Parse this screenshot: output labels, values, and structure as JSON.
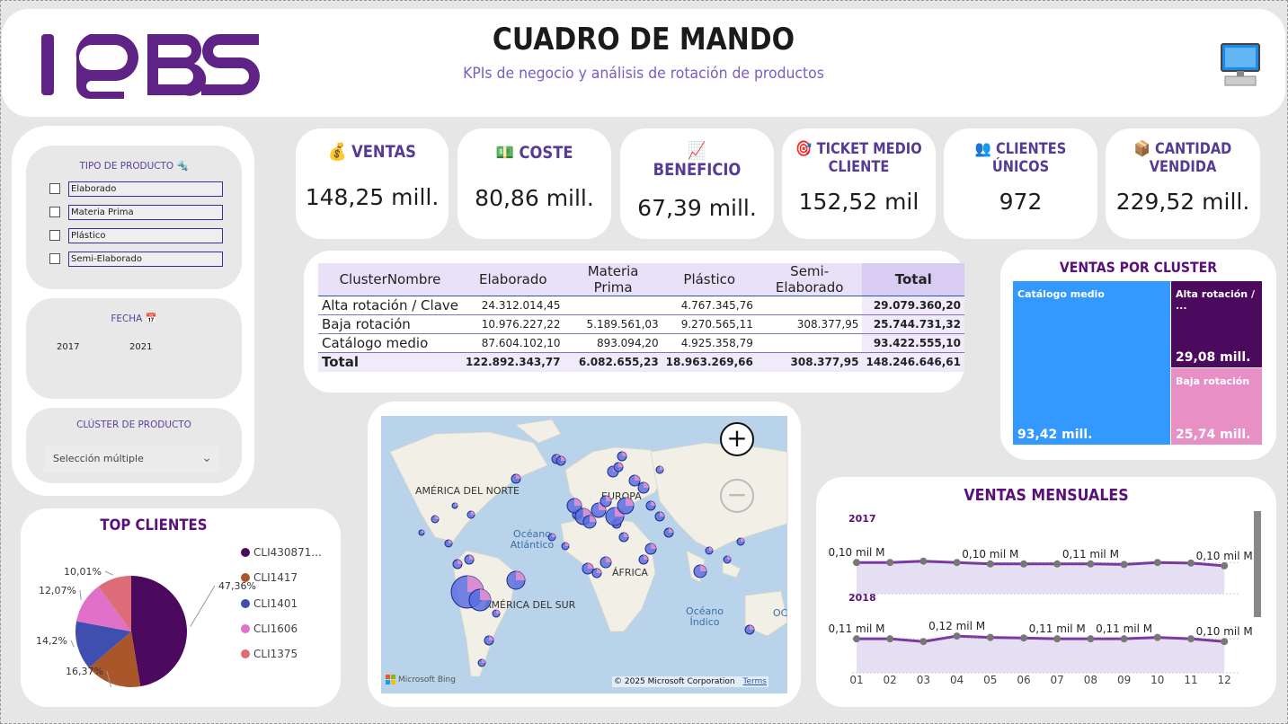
{
  "header": {
    "title": "CUADRO DE MANDO",
    "subtitle": "KPIs de negocio y análisis de rotación de productos"
  },
  "filters": {
    "product_type": {
      "title": "TIPO DE PRODUCTO 🔩",
      "options": [
        "Elaborado",
        "Materia Prima",
        "Plástico",
        "Semi-Elaborado"
      ]
    },
    "date": {
      "title": "FECHA 📅",
      "from": "2017",
      "to": "2021"
    },
    "cluster": {
      "title": "CLÚSTER DE PRODUCTO",
      "selected": "Selección múltiple"
    }
  },
  "kpis": [
    {
      "icon": "💰",
      "label": "VENTAS",
      "value": "148,25 mill."
    },
    {
      "icon": "💵",
      "label": "COSTE",
      "value": "80,86 mill."
    },
    {
      "icon": "📈",
      "label": "BENEFICIO",
      "value": "67,39 mill."
    },
    {
      "icon": "🎯",
      "label_line1": "TICKET MEDIO",
      "label_line2": "CLIENTE",
      "value": "152,52 mil"
    },
    {
      "icon": "👥",
      "label_line1": "CLIENTES",
      "label_line2": "ÚNICOS",
      "value": "972"
    },
    {
      "icon": "📦",
      "label_line1": "CANTIDAD",
      "label_line2": "VENDIDA",
      "value": "229,52 mill."
    }
  ],
  "matrix": {
    "headers": [
      "ClusterNombre",
      "Elaborado",
      "Materia Prima",
      "Plástico",
      "Semi-Elaborado",
      "Total"
    ],
    "rows": [
      [
        "Alta rotación / Clave",
        "24.312.014,45",
        "",
        "4.767.345,76",
        "",
        "29.079.360,20"
      ],
      [
        "Baja rotación",
        "10.976.227,22",
        "5.189.561,03",
        "9.270.565,11",
        "308.377,95",
        "25.744.731,32"
      ],
      [
        "Catálogo medio",
        "87.604.102,10",
        "893.094,20",
        "4.925.358,79",
        "",
        "93.422.555,10"
      ]
    ],
    "total": [
      "Total",
      "122.892.343,77",
      "6.082.655,23",
      "18.963.269,66",
      "308.377,95",
      "148.246.646,61"
    ]
  },
  "cluster_chart": {
    "title": "VENTAS POR CLUSTER",
    "items": [
      {
        "label": "Catálogo medio",
        "value": "93,42 mill.",
        "color": "#3399ff"
      },
      {
        "label": "Alta rotación / ...",
        "value": "29,08 mill.",
        "color": "#4b0a5e"
      },
      {
        "label": "Baja rotación",
        "value": "25,74 mill.",
        "color": "#e88fc6"
      }
    ]
  },
  "map": {
    "labels": [
      "AMÉRICA DEL NORTE",
      "EUROPA",
      "ÁFRICA",
      "AMÉRICA DEL SUR"
    ],
    "oceans": [
      "Océano Atlántico",
      "Océano Índico",
      "OC"
    ],
    "attribution": "Microsoft Bing",
    "copyright": "© 2025 Microsoft Corporation",
    "terms": "Terms",
    "zoom_in": "+",
    "zoom_out": "−"
  },
  "monthly": {
    "title": "VENTAS MENSUALES",
    "months": [
      "01",
      "02",
      "03",
      "04",
      "05",
      "06",
      "07",
      "08",
      "09",
      "10",
      "11",
      "12"
    ],
    "panels": [
      {
        "year": "2017",
        "labels": [
          "0,10 mil M",
          "0,10 mil M",
          "0,11 mil M",
          "0,10 mil M"
        ]
      },
      {
        "year": "2018",
        "labels": [
          "0,11 mil M",
          "0,12 mil M",
          "0,11 mil M",
          "0,11 mil M",
          "0,10 mil M"
        ]
      }
    ]
  },
  "top_clients": {
    "title": "TOP CLIENTES",
    "slices": [
      {
        "name": "CLI430871...",
        "pct": "47,36%",
        "value": 47.36,
        "color": "#4b0a5e"
      },
      {
        "name": "CLI1417",
        "pct": "16,37%",
        "value": 16.37,
        "color": "#a9562b"
      },
      {
        "name": "CLI1401",
        "pct": "14,2%",
        "value": 14.2,
        "color": "#3f4fb0"
      },
      {
        "name": "CLI1606",
        "pct": "12,07%",
        "value": 12.07,
        "color": "#e070c8"
      },
      {
        "name": "CLI1375",
        "pct": "10,01%",
        "value": 10.01,
        "color": "#de6b78"
      }
    ]
  }
}
